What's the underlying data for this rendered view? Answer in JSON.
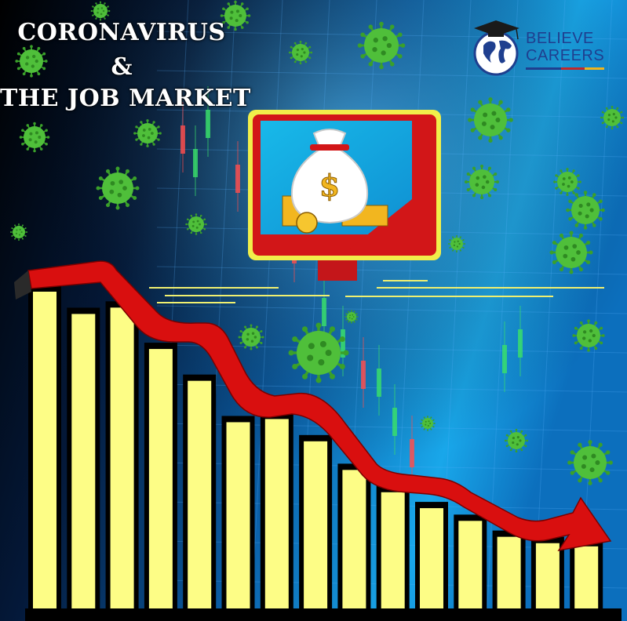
{
  "title": {
    "line1": "CORONAVIRUS",
    "line2": "&",
    "line3": "THE JOB MARKET"
  },
  "logo": {
    "line1": "BELIEVE",
    "line2": "CAREERS",
    "icon": "globe-graduation-cap-icon",
    "colors": [
      "#1f3f8f",
      "#c0282b",
      "#f0b41d"
    ]
  },
  "monitor": {
    "icon": "money-bag-icon",
    "symbol": "$"
  },
  "bars": {
    "count": 15,
    "relative_heights": [
      1.0,
      0.93,
      0.95,
      0.82,
      0.72,
      0.59,
      0.6,
      0.53,
      0.44,
      0.37,
      0.32,
      0.28,
      0.23,
      0.21,
      0.2
    ]
  },
  "colors": {
    "bar": "#fdfd86",
    "arrow": "#d90f0f",
    "virus": "#4fbf3a",
    "background_dark": "#000000",
    "background_blue": "#1a8fd8"
  }
}
